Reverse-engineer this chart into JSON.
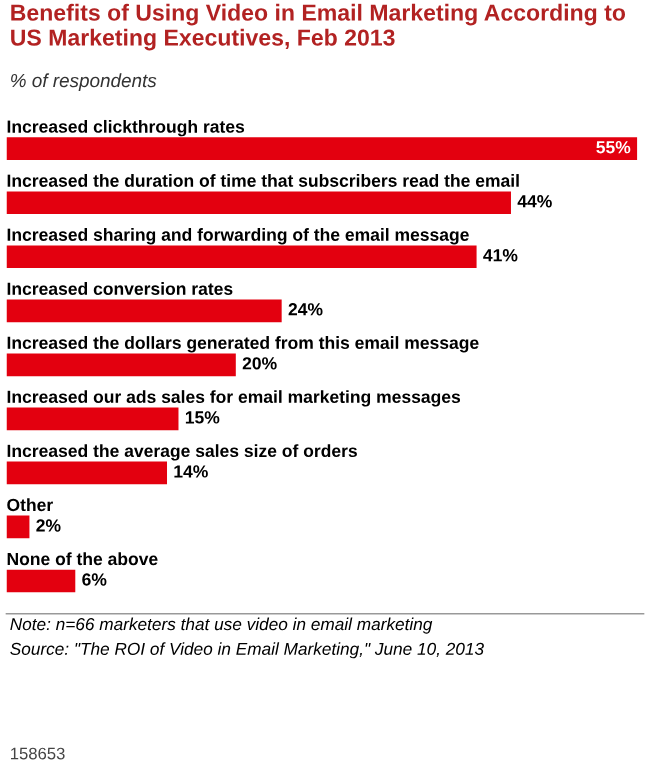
{
  "chart_data": {
    "type": "bar",
    "orientation": "horizontal",
    "title": "Benefits of Using Video in Email Marketing According to US Marketing Executives, Feb 2013",
    "subtitle": "% of respondents",
    "categories": [
      "Increased clickthrough rates",
      "Increased the duration of time that subscribers read the email",
      "Increased sharing and forwarding of the email message",
      "Increased conversion rates",
      "Increased the dollars generated from this email message",
      "Increased our ads sales for email marketing messages",
      "Increased the average sales size of orders",
      "Other",
      "None of the above"
    ],
    "values": [
      55,
      44,
      41,
      24,
      20,
      15,
      14,
      2,
      6
    ],
    "value_labels": [
      "55%",
      "44%",
      "41%",
      "24%",
      "20%",
      "15%",
      "14%",
      "2%",
      "6%"
    ],
    "color": "#e3000f",
    "annotations": [
      "Note: n=66 marketers that use video in email marketing",
      "Source: \"The ROI of Video in Email Marketing,\" June 10, 2013",
      "158653"
    ]
  }
}
